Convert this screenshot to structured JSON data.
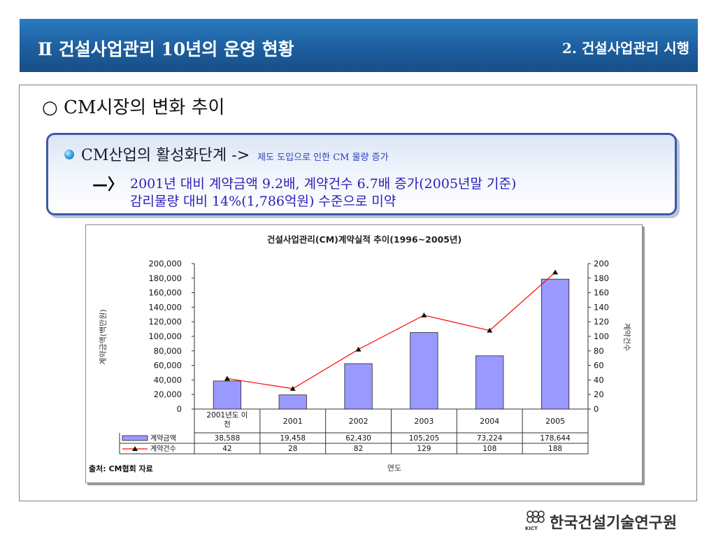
{
  "header": {
    "title": "Ⅱ  건설사업관리 10년의 운영 현황",
    "subtitle": "2. 건설사업관리 시행"
  },
  "section": {
    "heading": "○ CM시장의 변화 추이"
  },
  "callout": {
    "main": "CM산업의 활성화단계 ->",
    "note": "제도 도입으로 인한 CM 물량 증가",
    "arrow": "—〉",
    "line1": "2001년 대비 계약금액 9.2배, 계약건수 6.7배 증가(2005년말 기준)",
    "line2": "감리물량 대비 14%(1,786억원) 수준으로 미약"
  },
  "colors": {
    "header": "#1d5f9f",
    "bar": "#9999ff",
    "line": "#ff0000",
    "callout_text": "#2a1fb8"
  },
  "chart_data": {
    "type": "bar",
    "title": "건설사업관리(CM)계약실적 추이(1996~2005년)",
    "xlabel": "연도",
    "ylabel": "계약금액(백만원)",
    "y2label": "계약건수",
    "categories": [
      "2001년도 이전",
      "2001",
      "2002",
      "2003",
      "2004",
      "2005"
    ],
    "ylim": [
      0,
      200000
    ],
    "y2lim": [
      0,
      200
    ],
    "y_ticks": [
      "0",
      "20,000",
      "40,000",
      "60,000",
      "80,000",
      "100,000",
      "120,000",
      "140,000",
      "160,000",
      "180,000",
      "200,000"
    ],
    "y2_ticks": [
      "0",
      "20",
      "40",
      "60",
      "80",
      "100",
      "120",
      "140",
      "160",
      "180",
      "200"
    ],
    "series": [
      {
        "name": "계약금액",
        "type": "bar",
        "axis": "left",
        "values": [
          38588,
          19458,
          62430,
          105205,
          73224,
          178644
        ],
        "labels": [
          "38,588",
          "19,458",
          "62,430",
          "105,205",
          "73,224",
          "178,644"
        ]
      },
      {
        "name": "계약건수",
        "type": "line",
        "axis": "right",
        "values": [
          42,
          28,
          82,
          129,
          108,
          188
        ],
        "labels": [
          "42",
          "28",
          "82",
          "129",
          "108",
          "188"
        ]
      }
    ],
    "source": "출처: CM협회 자료",
    "grid": false,
    "legend": "data-table"
  },
  "footer": {
    "logo_text": "한국건설기술연구원",
    "logo_abbr": "KICT"
  }
}
